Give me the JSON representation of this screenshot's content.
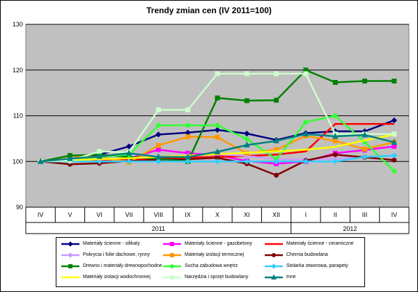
{
  "chart_data": {
    "type": "line",
    "title": "Trendy zmian cen (IV 2011=100)",
    "x": [
      "IV",
      "V",
      "VI",
      "VII",
      "VIII",
      "IX",
      "X",
      "XI",
      "XII",
      "I",
      "II",
      "III",
      "IV"
    ],
    "year_groups": [
      {
        "label": "2011",
        "from": 0,
        "to": 8
      },
      {
        "label": "2012",
        "from": 9,
        "to": 12
      }
    ],
    "ylim": [
      90,
      130
    ],
    "yticks": [
      90,
      100,
      110,
      120,
      130
    ],
    "grid": true,
    "legend": "bottom",
    "series": [
      {
        "name": "Materiały ścienne - silikaty",
        "color": "#000080",
        "marker": "diamond",
        "values": [
          100,
          100.5,
          101.5,
          103.3,
          105.9,
          106.3,
          106.9,
          106.1,
          104.7,
          106.2,
          106.6,
          106.6,
          109.0
        ]
      },
      {
        "name": "Materiały ścienne - gazobetony",
        "color": "#ff00ff",
        "marker": "square",
        "values": [
          100,
          100.3,
          100.4,
          100.6,
          102.6,
          101.8,
          101.4,
          100.1,
          99.5,
          100.0,
          101.8,
          102.5,
          103.3
        ]
      },
      {
        "name": "Materiały ścienne - ceramiczne",
        "color": "#ff0000",
        "marker": "none",
        "values": [
          100,
          100.2,
          100.4,
          100.5,
          100.7,
          100.9,
          101.0,
          101.2,
          101.5,
          102.2,
          108.2,
          108.2,
          108.2
        ]
      },
      {
        "name": "Pokrycia i folie dachowe, rynny",
        "color": "#cc99ff",
        "marker": "diamond",
        "values": [
          100,
          100.2,
          100.5,
          100.8,
          101.0,
          101.3,
          101.6,
          101.2,
          100.5,
          100.4,
          100.6,
          101.0,
          101.3
        ]
      },
      {
        "name": "Materiały izolacji termicznej",
        "color": "#ff9900",
        "marker": "square",
        "values": [
          100,
          101.2,
          101.0,
          99.8,
          103.5,
          105.4,
          105.3,
          101.8,
          102.6,
          105.6,
          104.5,
          102.7,
          104.2
        ]
      },
      {
        "name": "Chemia budowlana",
        "color": "#800000",
        "marker": "circle",
        "values": [
          100,
          99.4,
          99.6,
          100.1,
          100.4,
          100.5,
          100.8,
          99.5,
          97.0,
          100.2,
          101.5,
          100.9,
          100.3
        ]
      },
      {
        "name": "Drewno i materiały drewnopochodne",
        "color": "#008000",
        "marker": "square",
        "values": [
          100,
          101.3,
          101.5,
          101.0,
          100.6,
          100.0,
          113.9,
          113.3,
          113.4,
          120.0,
          117.3,
          117.6,
          117.6
        ]
      },
      {
        "name": "Sucha zabudowa wnętrz",
        "color": "#33ff33",
        "marker": "circle",
        "values": [
          100,
          100.5,
          101.0,
          101.5,
          107.9,
          107.9,
          107.9,
          104.9,
          100.5,
          108.6,
          110.0,
          104.3,
          97.9
        ]
      },
      {
        "name": "Stolarka otworowa, parapety",
        "color": "#33ccff",
        "marker": "diamond",
        "values": [
          100,
          100.0,
          100.0,
          100.0,
          100.0,
          100.0,
          100.0,
          100.0,
          100.0,
          100.0,
          100.0,
          101.0,
          101.3
        ]
      },
      {
        "name": "Materiały izolacji wodochronnej",
        "color": "#ffff00",
        "marker": "none",
        "values": [
          100,
          100.3,
          100.5,
          100.7,
          101.0,
          101.3,
          101.6,
          101.9,
          102.2,
          102.6,
          103.2,
          104.6,
          105.9
        ]
      },
      {
        "name": "Narzędzia i sprzęt budowlany",
        "color": "#ccffcc",
        "marker": "square",
        "values": [
          100,
          100.2,
          102.2,
          102.0,
          111.3,
          111.3,
          119.2,
          119.2,
          119.2,
          119.2,
          106.0,
          106.0,
          106.0
        ]
      },
      {
        "name": "Inne",
        "color": "#008080",
        "marker": "triangle",
        "values": [
          100,
          100.6,
          101.1,
          101.8,
          101.0,
          101.0,
          102.1,
          103.6,
          104.5,
          106.0,
          105.5,
          105.8,
          104.2
        ]
      }
    ]
  }
}
